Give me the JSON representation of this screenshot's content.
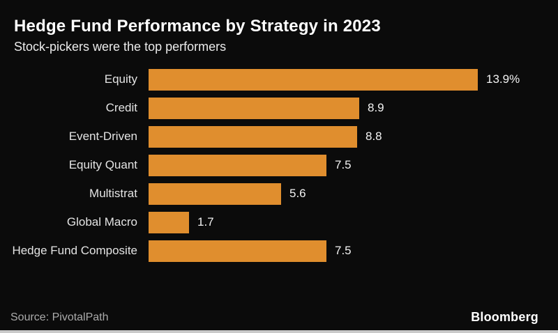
{
  "header": {
    "title": "Hedge Fund Performance by Strategy in 2023",
    "subtitle": "Stock-pickers were the top performers"
  },
  "footer": {
    "source": "Source: PivotalPath",
    "brand": "Bloomberg"
  },
  "chart_data": {
    "type": "bar",
    "orientation": "horizontal",
    "title": "Hedge Fund Performance by Strategy in 2023",
    "subtitle": "Stock-pickers were the top performers",
    "categories": [
      "Equity",
      "Credit",
      "Event-Driven",
      "Equity Quant",
      "Multistrat",
      "Global Macro",
      "Hedge Fund Composite"
    ],
    "values": [
      13.9,
      8.9,
      8.8,
      7.5,
      5.6,
      1.7,
      7.5
    ],
    "value_labels": [
      "13.9%",
      "8.9",
      "8.8",
      "7.5",
      "5.6",
      "1.7",
      "7.5"
    ],
    "xlabel": "",
    "ylabel": "",
    "xlim": [
      0,
      14.5
    ],
    "grid": false,
    "legend": false,
    "bar_color": "#e08e2e",
    "background_color": "#0b0b0b",
    "unit": "percent"
  }
}
